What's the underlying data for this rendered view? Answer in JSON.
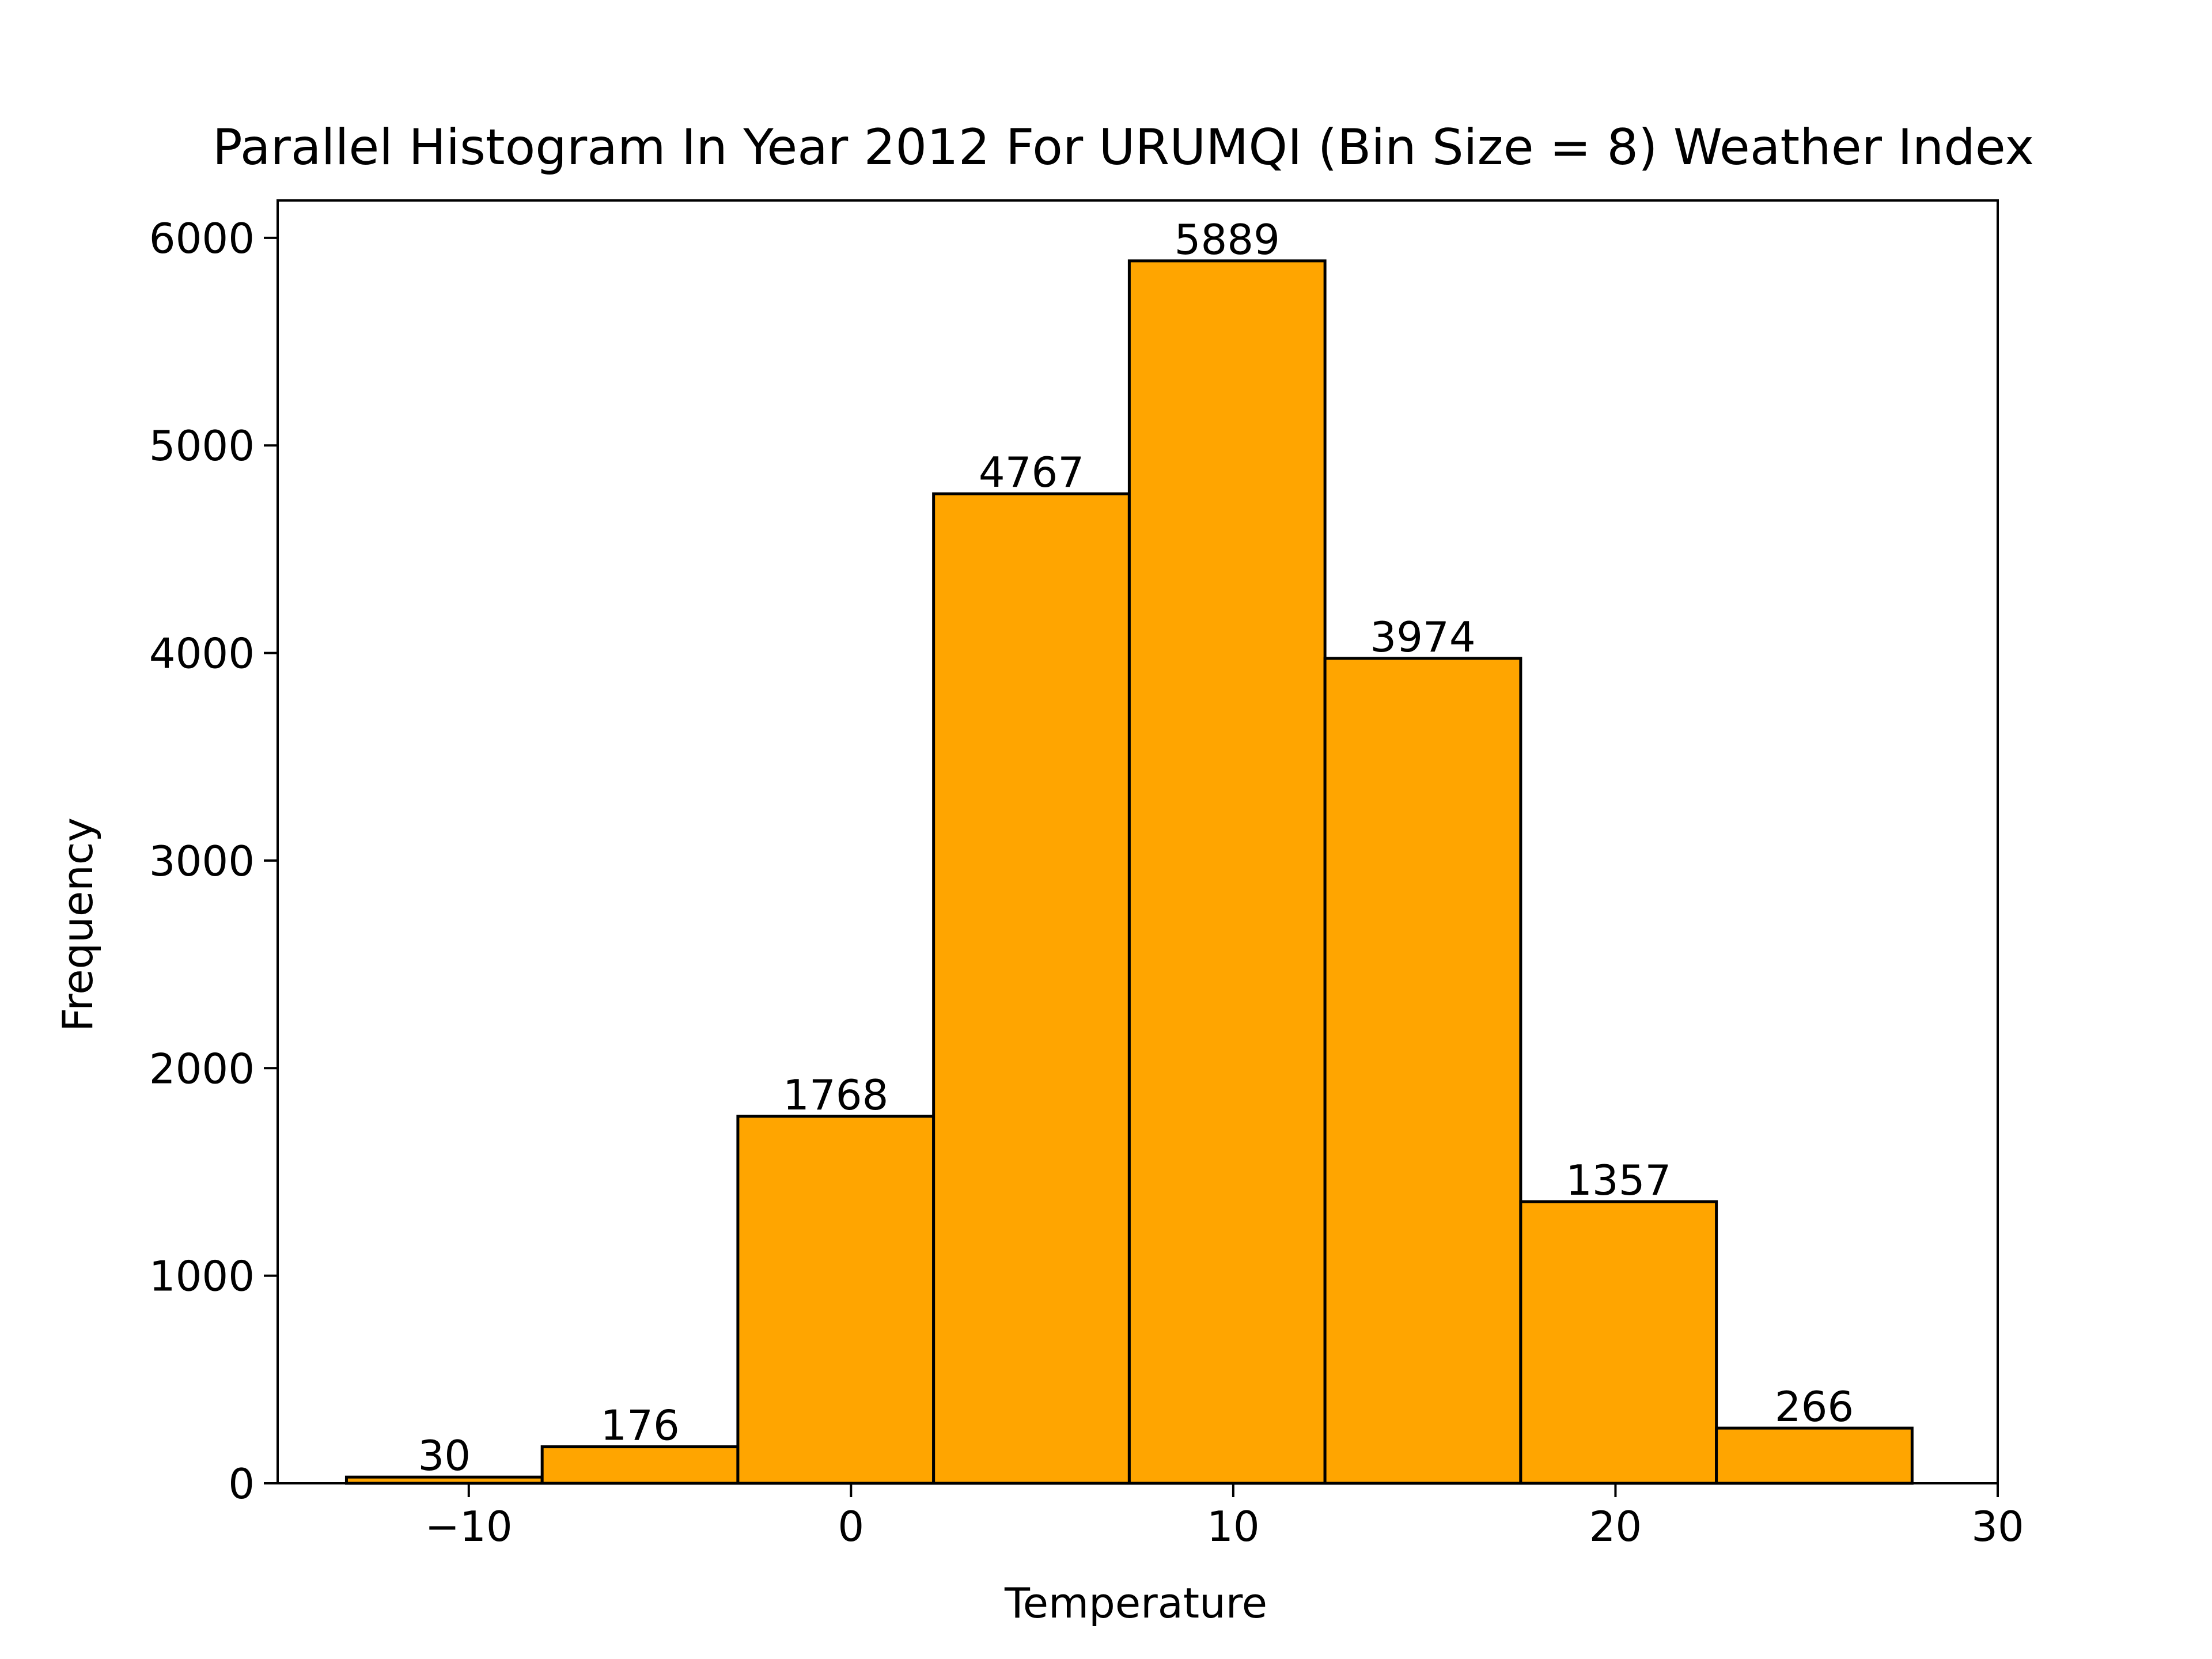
{
  "colors": {
    "bar_fill": "#FFA500",
    "bar_edge": "#000000",
    "axis": "#000000",
    "background": "#FFFFFF"
  },
  "chart_data": {
    "type": "bar",
    "title": "Parallel Histogram In Year 2012 For URUMQI (Bin Size = 8) Weather Index",
    "xlabel": "Temperature",
    "ylabel": "Frequency",
    "xlim": [
      -15,
      30
    ],
    "ylim": [
      0,
      6180
    ],
    "grid": false,
    "bins": [
      {
        "x0": -13.2,
        "x1": -8.08,
        "value": 30
      },
      {
        "x0": -8.08,
        "x1": -2.96,
        "value": 176
      },
      {
        "x0": -2.96,
        "x1": 2.16,
        "value": 1768
      },
      {
        "x0": 2.16,
        "x1": 7.28,
        "value": 4767
      },
      {
        "x0": 7.28,
        "x1": 12.4,
        "value": 5889
      },
      {
        "x0": 12.4,
        "x1": 17.52,
        "value": 3974
      },
      {
        "x0": 17.52,
        "x1": 22.64,
        "value": 1357
      },
      {
        "x0": 22.64,
        "x1": 27.76,
        "value": 266
      }
    ],
    "x_ticks": [
      {
        "value": -10,
        "label": "−10"
      },
      {
        "value": 0,
        "label": "0"
      },
      {
        "value": 10,
        "label": "10"
      },
      {
        "value": 20,
        "label": "20"
      },
      {
        "value": 30,
        "label": "30"
      }
    ],
    "y_ticks": [
      {
        "value": 0,
        "label": "0"
      },
      {
        "value": 1000,
        "label": "1000"
      },
      {
        "value": 2000,
        "label": "2000"
      },
      {
        "value": 3000,
        "label": "3000"
      },
      {
        "value": 4000,
        "label": "4000"
      },
      {
        "value": 5000,
        "label": "5000"
      },
      {
        "value": 6000,
        "label": "6000"
      }
    ]
  }
}
